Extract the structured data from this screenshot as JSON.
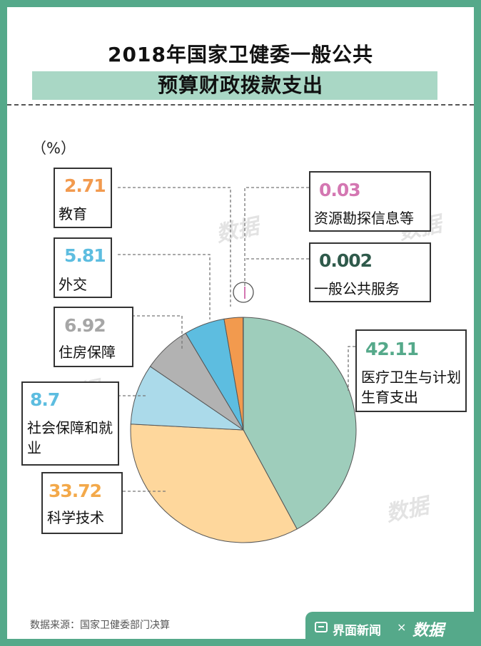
{
  "title_line1": "2018年国家卫健委一般公共",
  "title_line2": "预算财政拨款支出",
  "unit": "（%）",
  "source": "数据来源：国家卫健委部门决算",
  "brand": {
    "news": "界面新闻",
    "sep": "×",
    "partner": "数据"
  },
  "watermark": "数据",
  "chart_data": {
    "type": "pie",
    "categories": [
      "医疗卫生与计划生育支出",
      "科学技术",
      "社会保障和就业",
      "住房保障",
      "外交",
      "教育",
      "资源勘探信息等",
      "一般公共服务"
    ],
    "values": [
      42.11,
      33.72,
      8.7,
      6.92,
      5.81,
      2.71,
      0.03,
      0.002
    ],
    "value_labels": [
      "42.11",
      "33.72",
      "8.7",
      "6.92",
      "5.81",
      "2.71",
      "0.03",
      "0.002"
    ],
    "colors": [
      "#9ecdbb",
      "#fed79c",
      "#abdaea",
      "#b2b2b2",
      "#5dbde0",
      "#f29a4e",
      "#d477b2",
      "#2f5a4b"
    ],
    "value_colors": [
      "#55a98a",
      "#f3a94a",
      "#5dbde0",
      "#a6a6a6",
      "#5dbde0",
      "#f29a4e",
      "#d477b2",
      "#2f5a4b"
    ],
    "start": "12 o'clock, clockwise",
    "legend": "none"
  }
}
